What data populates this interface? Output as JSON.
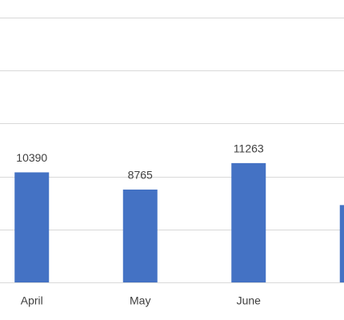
{
  "chart_data": {
    "type": "bar",
    "categories": [
      "April",
      "May",
      "June",
      null
    ],
    "values": [
      10390,
      8765,
      11263,
      7300
    ],
    "color": "#4472c4",
    "ylim": [
      0,
      25000
    ],
    "yticks": [
      0,
      5000,
      10000,
      15000,
      20000,
      25000
    ],
    "grid": true
  }
}
